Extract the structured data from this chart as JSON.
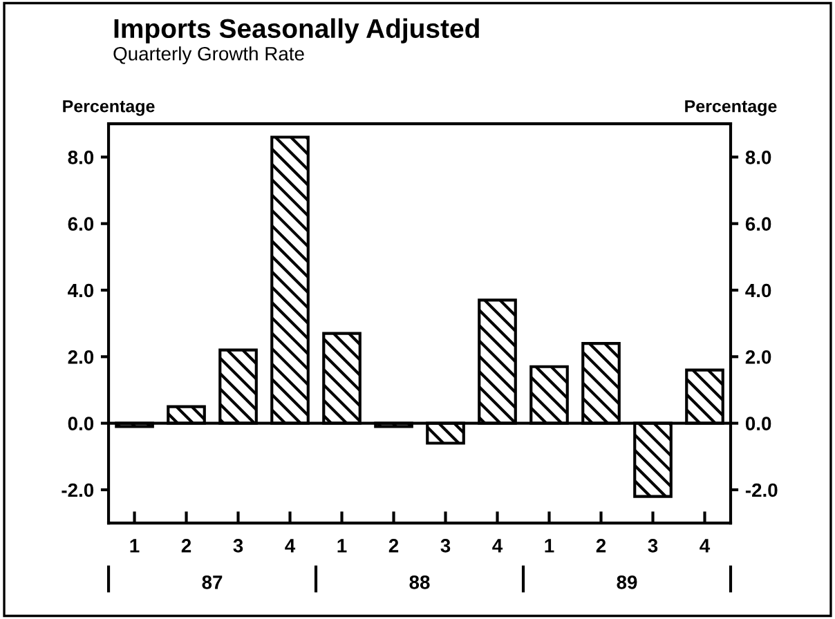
{
  "chart_data": {
    "type": "bar",
    "title": "Imports Seasonally Adjusted",
    "subtitle": "Quarterly Growth Rate",
    "ylabel": "Percentage",
    "y2label": "Percentage",
    "categories": [
      "1",
      "2",
      "3",
      "4",
      "1",
      "2",
      "3",
      "4",
      "1",
      "2",
      "3",
      "4"
    ],
    "series": [
      {
        "color": "#000000",
        "values": [
          -0.1,
          0.5,
          2.2,
          8.6,
          2.7,
          -0.1,
          -0.6,
          3.7,
          1.7,
          2.4,
          -2.2,
          1.6
        ]
      }
    ],
    "annotations": [
      "87",
      "88",
      "89"
    ],
    "ylim": [
      -3.0,
      9.0
    ],
    "yticks": [
      {
        "value": -2,
        "label": "-2.0"
      },
      {
        "value": 0,
        "label": "0.0"
      },
      {
        "value": 2,
        "label": "2.0"
      },
      {
        "value": 4,
        "label": "4.0"
      },
      {
        "value": 6,
        "label": "6.0"
      },
      {
        "value": 8,
        "label": "8.0"
      }
    ],
    "y2lim": [
      -3.0,
      9.0
    ],
    "y2ticks": [
      {
        "value": -2,
        "label": "-2.0"
      },
      {
        "value": 0,
        "label": "0.0"
      },
      {
        "value": 2,
        "label": "2.0"
      },
      {
        "value": 4,
        "label": "4.0"
      },
      {
        "value": 6,
        "label": "6.0"
      },
      {
        "value": 8,
        "label": "8.0"
      }
    ],
    "ref_lines": [
      {
        "axis": "y",
        "value": 0,
        "color": "#000000"
      }
    ]
  }
}
